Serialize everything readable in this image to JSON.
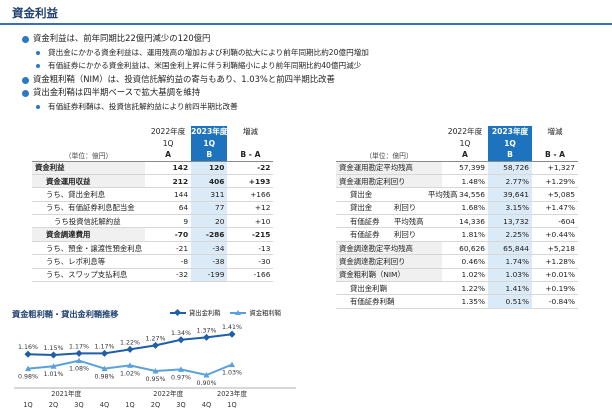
{
  "title": "資金利益",
  "bullets": [
    {
      "text": "資金利益は、前年同期比22億円減少の120億円",
      "subs": [
        "貸出金にかかる資金利益は、運用残高の増加および利鞘の拡大により前年同期比約20億円増加",
        "有価証券にかかる資金利益は、米国金利上昇に伴う利鞘縮小により前年同期比約40億円減少"
      ]
    },
    {
      "text": "資金粗利鞘（NIM）は、投資信託解約益の寄与もあり、1.03%と前四半期比改善",
      "subs": []
    },
    {
      "text": "貸出金利鞘は四半期ベースで拡大基調を維持",
      "subs": [
        "有価証券利鞘は、投資信託解約益により前四半期比改善"
      ]
    }
  ],
  "left_table": {
    "col_year": [
      "2022年度",
      "2023年度",
      "増減"
    ],
    "col_q": [
      "1Q",
      "1Q",
      ""
    ],
    "col_letter": [
      "A",
      "B",
      "B - A"
    ],
    "unit": "（単位：億円）",
    "rows": [
      {
        "label": "資金利益",
        "a": "142",
        "b": "120",
        "d": "-22"
      },
      {
        "label": "資金運用収益",
        "a": "212",
        "b": "406",
        "d": "+193"
      },
      {
        "label": "うち、貸出金利息",
        "a": "144",
        "b": "311",
        "d": "+166"
      },
      {
        "label": "うち、有価証券利息配当金",
        "a": "64",
        "b": "77",
        "d": "+12"
      },
      {
        "label": "うち投資信託解約益",
        "a": "9",
        "b": "20",
        "d": "+10"
      },
      {
        "label": "資金調達費用",
        "a": "-70",
        "b": "-286",
        "d": "-215"
      },
      {
        "label": "うち、預金・譲渡性預金利息",
        "a": "-21",
        "b": "-34",
        "d": "-13"
      },
      {
        "label": "うち、レポ利息等",
        "a": "-8",
        "b": "-38",
        "d": "-30"
      },
      {
        "label": "うち、スワップ支払利息",
        "a": "-32",
        "b": "-199",
        "d": "-166"
      }
    ]
  },
  "right_table": {
    "col_year": [
      "2022年度",
      "2023年度",
      "増減"
    ],
    "col_q": [
      "1Q",
      "1Q",
      ""
    ],
    "col_letter": [
      "A",
      "B",
      "B - A"
    ],
    "unit": "（単位：億円）",
    "rows": [
      {
        "label": "資金運用勘定平均残高",
        "a": "57,399",
        "b": "58,726",
        "d": "+1,327"
      },
      {
        "label": "資金運用勘定利回り",
        "a": "1.48%",
        "b": "2.77%",
        "d": "+1.29%"
      },
      {
        "label": "貸出金",
        "label2": "平均残高",
        "a": "34,556",
        "b": "39,641",
        "d": "+5,085"
      },
      {
        "label": "貸出金",
        "label2": "利回り",
        "a": "1.68%",
        "b": "3.15%",
        "d": "+1.47%"
      },
      {
        "label": "有価証券",
        "label2": "平均残高",
        "a": "14,336",
        "b": "13,732",
        "d": "-604"
      },
      {
        "label": "有価証券",
        "label2": "利回り",
        "a": "1.81%",
        "b": "2.25%",
        "d": "+0.44%"
      },
      {
        "label": "資金調達勘定平均残高",
        "a": "60,626",
        "b": "65,844",
        "d": "+5,218"
      },
      {
        "label": "資金調達勘定利回り",
        "a": "0.46%",
        "b": "1.74%",
        "d": "+1.28%"
      },
      {
        "label": "資金粗利鞘（NIM）",
        "a": "1.02%",
        "b": "1.03%",
        "d": "+0.01%"
      },
      {
        "label": "貸出金利鞘",
        "a": "1.22%",
        "b": "1.41%",
        "d": "+0.19%"
      },
      {
        "label": "有価証券利鞘",
        "a": "1.35%",
        "b": "0.51%",
        "d": "-0.84%"
      }
    ]
  },
  "chart_title": "資金粗利鞘・貸出金利鞘推移",
  "chart_data": {
    "type": "line",
    "categories": [
      "1Q",
      "2Q",
      "3Q",
      "4Q",
      "1Q",
      "2Q",
      "3Q",
      "4Q",
      "1Q"
    ],
    "year_labels": [
      "2021年度",
      "2022年度",
      "2023年度"
    ],
    "series": [
      {
        "name": "貸出金利鞘",
        "color": "#1f5ea8",
        "marker": "diamond",
        "values": [
          1.16,
          1.15,
          1.17,
          1.17,
          1.22,
          1.27,
          1.34,
          1.37,
          1.41
        ],
        "labels": [
          "1.16%",
          "1.15%",
          "1.17%",
          "1.17%",
          "1.22%",
          "1.27%",
          "1.34%",
          "1.37%",
          "1.41%"
        ]
      },
      {
        "name": "資金粗利鞘",
        "color": "#5aa0dd",
        "marker": "triangle",
        "values": [
          0.98,
          1.01,
          1.08,
          0.98,
          1.02,
          0.95,
          0.97,
          0.9,
          1.03
        ],
        "labels": [
          "0.98%",
          "1.01%",
          "1.08%",
          "0.98%",
          "1.02%",
          "0.95%",
          "0.97%",
          "0.90%",
          "1.03%"
        ]
      }
    ]
  }
}
